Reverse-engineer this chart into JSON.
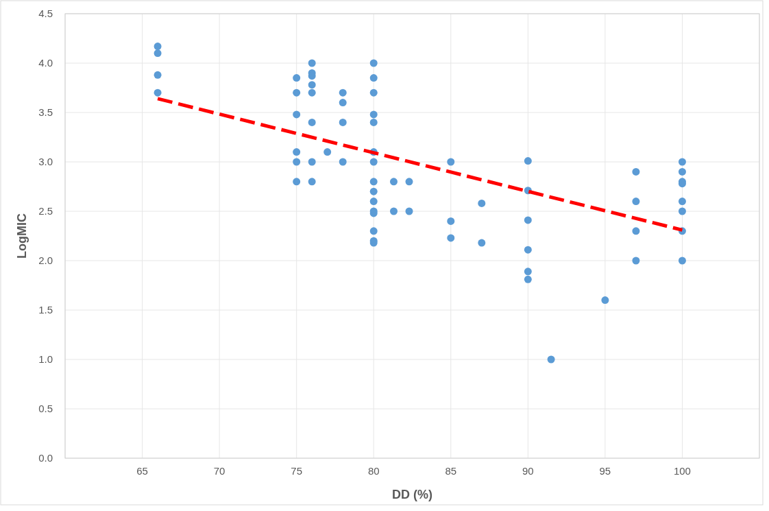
{
  "chart_data": {
    "type": "scatter",
    "xlabel": "DD (%)",
    "ylabel": "LogMIC",
    "xlim": [
      60,
      105
    ],
    "xticks": [
      {
        "value": 60,
        "label": null
      },
      65,
      70,
      75,
      80,
      85,
      90,
      95,
      100,
      {
        "value": 105,
        "label": null
      }
    ],
    "ylim": [
      0,
      4.5
    ],
    "yticks": [
      {
        "value": 0,
        "label": "0.0"
      },
      0.5,
      {
        "value": 1,
        "label": "1.0"
      },
      1.5,
      {
        "value": 2,
        "label": "2.0"
      },
      2.5,
      {
        "value": 3,
        "label": "3.0"
      },
      3.5,
      {
        "value": 4,
        "label": "4.0"
      },
      4.5
    ],
    "grid": true,
    "marker": "circle",
    "series": [
      {
        "color": "#5b9bd5",
        "x": [
          66,
          66,
          66,
          66,
          75,
          75,
          75,
          75,
          75,
          75,
          76,
          76,
          76,
          76,
          76,
          76,
          76,
          76,
          77,
          78,
          78,
          78,
          78,
          80,
          80,
          80,
          80,
          80,
          80,
          80,
          80,
          80,
          80,
          80,
          80,
          80,
          80,
          80,
          81.3,
          81.3,
          82.3,
          82.3,
          85,
          85,
          85,
          87,
          87,
          90,
          90,
          90,
          90,
          90,
          90,
          91.5,
          95,
          97,
          97,
          97,
          97,
          100,
          100,
          100,
          100,
          100,
          100,
          100,
          100
        ],
        "values": [
          4.17,
          4.1,
          3.88,
          3.7,
          3.85,
          3.7,
          3.48,
          3.1,
          3,
          2.8,
          4,
          3.9,
          3.87,
          3.78,
          3.7,
          3.4,
          3,
          2.8,
          3.1,
          3.7,
          3.6,
          3.4,
          3,
          4,
          3.85,
          3.7,
          3.48,
          3.4,
          3.1,
          3,
          2.8,
          2.7,
          2.6,
          2.5,
          2.48,
          2.3,
          2.2,
          2.18,
          2.8,
          2.5,
          2.8,
          2.5,
          3,
          2.4,
          2.23,
          2.58,
          2.18,
          3.01,
          2.71,
          2.41,
          2.11,
          1.89,
          1.81,
          1,
          1.6,
          2.9,
          2.6,
          2.3,
          2,
          3,
          2.9,
          2.8,
          2.78,
          2.6,
          2.5,
          2.3,
          2
        ]
      },
      {
        "type": "line",
        "color": "#ff0000",
        "line_style": "dashed",
        "marker": "none",
        "x": [
          66,
          100
        ],
        "values": [
          3.64,
          2.31
        ]
      }
    ]
  }
}
